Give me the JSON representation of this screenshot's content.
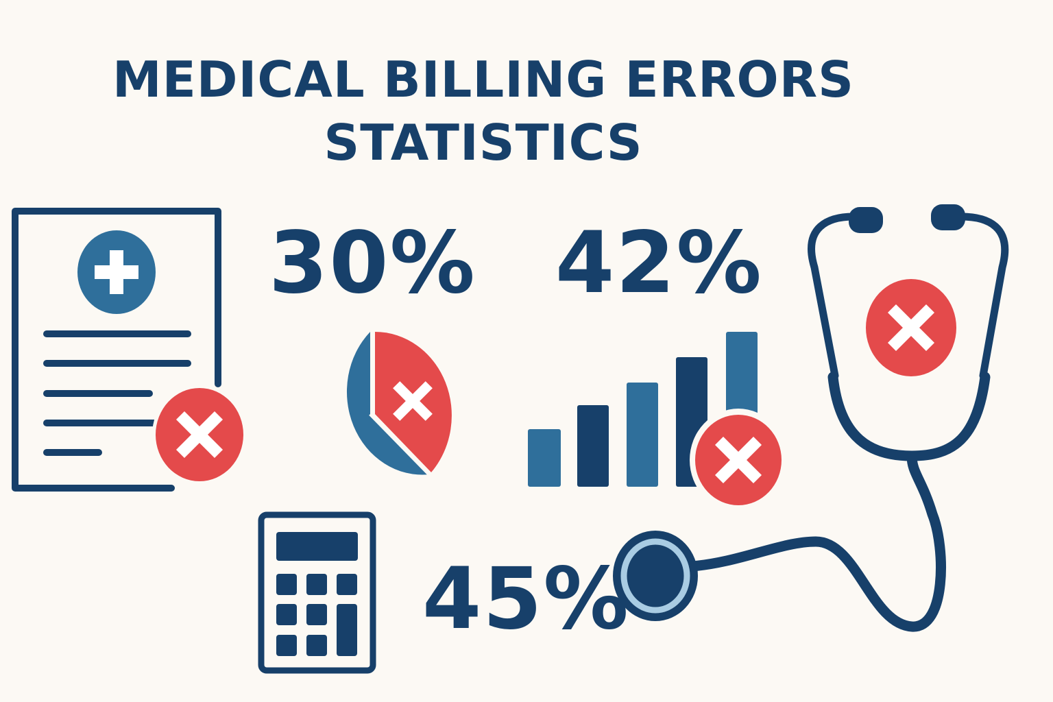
{
  "title": {
    "line1": "MEDICAL BILLING ERRORS",
    "line2": "STATISTICS"
  },
  "stats": [
    {
      "value": "30%",
      "icon": "pie-chart-icon"
    },
    {
      "value": "42%",
      "icon": "bar-chart-icon"
    },
    {
      "value": "45%",
      "icon": "calculator-icon"
    }
  ],
  "icons": [
    "medical-document-icon",
    "pie-chart-icon",
    "bar-chart-icon",
    "calculator-icon",
    "stethoscope-icon",
    "error-x-icon"
  ],
  "colors": {
    "background": "#fcf9f4",
    "navy": "#17406a",
    "blue": "#2f6f9b",
    "red": "#e44a4b",
    "light_blue": "#a9cce3",
    "white": "#ffffff"
  }
}
